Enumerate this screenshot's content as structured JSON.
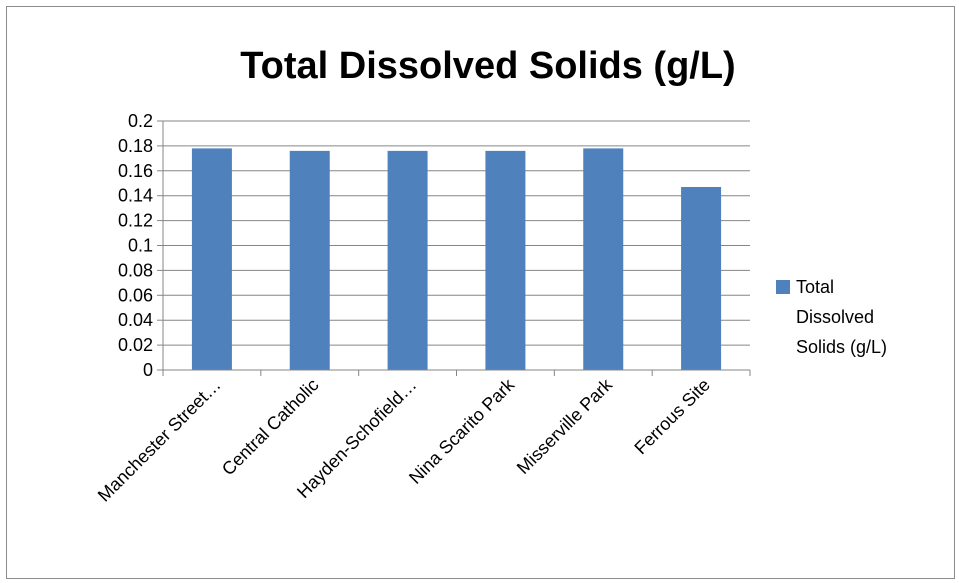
{
  "chart_data": {
    "type": "bar",
    "title": "Total Dissolved Solids (g/L)",
    "xlabel": "",
    "ylabel": "",
    "categories": [
      "Manchester Street…",
      "Central Catholic",
      "Hayden-Schofield…",
      "Nina Scarito Park",
      "Misserville Park",
      "Ferrous Site"
    ],
    "series": [
      {
        "name": "Total Dissolved Solids (g/L)",
        "values": [
          0.178,
          0.176,
          0.176,
          0.176,
          0.178,
          0.147
        ],
        "color": "#4f81bd"
      }
    ],
    "ylim": [
      0,
      0.2
    ],
    "yticks": [
      "0",
      "0.02",
      "0.04",
      "0.06",
      "0.08",
      "0.1",
      "0.12",
      "0.14",
      "0.16",
      "0.18",
      "0.2"
    ],
    "grid": true,
    "legend": {
      "position": "right",
      "lines": [
        "Total",
        "Dissolved",
        "Solids (g/L)"
      ]
    }
  }
}
